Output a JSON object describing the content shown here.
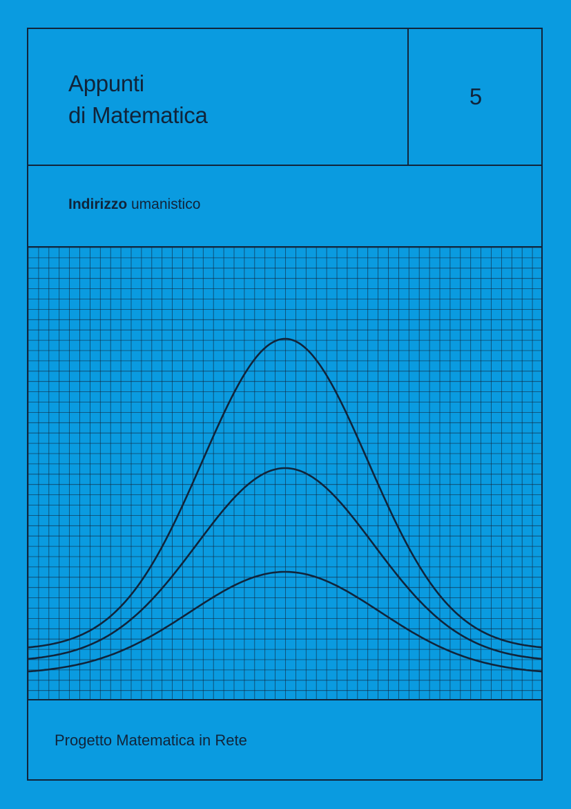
{
  "cover": {
    "title_line1": "Appunti",
    "title_line2": "di Matematica",
    "volume_number": "5",
    "subtitle_bold": "Indirizzo",
    "subtitle_rest": " umanistico",
    "footer": "Progetto Matematica in Rete"
  },
  "colors": {
    "background": "#0a9be0",
    "ink": "#11243a"
  },
  "illustration": {
    "kind": "three bell curves on grid paper",
    "curves": 3
  }
}
